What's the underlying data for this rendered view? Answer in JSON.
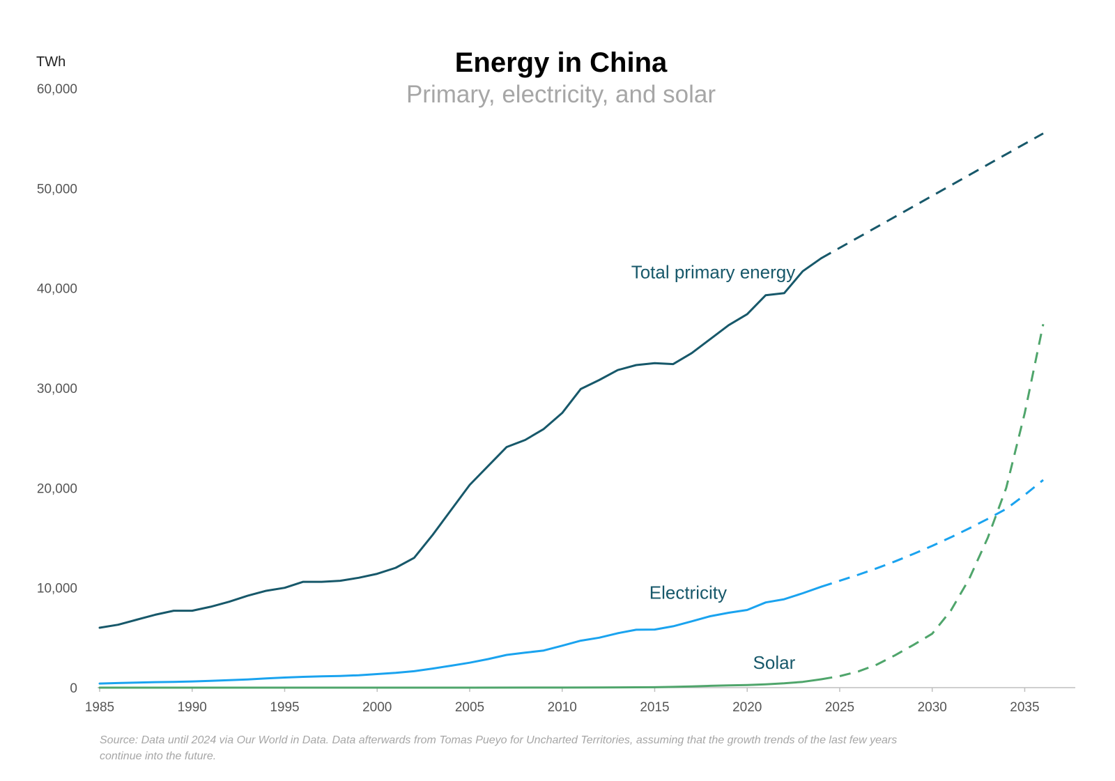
{
  "chart_data": {
    "type": "line",
    "title": "Energy in China",
    "subtitle": "Primary, electricity, and solar",
    "ylabel": "TWh",
    "xlabel": "",
    "xlim": [
      1985,
      2036
    ],
    "ylim": [
      0,
      60000
    ],
    "x_ticks": [
      "1985",
      "1990",
      "1995",
      "2000",
      "2005",
      "2010",
      "2015",
      "2020",
      "2025",
      "2030",
      "2035"
    ],
    "y_ticks": [
      "0",
      "10,000",
      "20,000",
      "30,000",
      "40,000",
      "50,000",
      "60,000"
    ],
    "grid": false,
    "legend": "none (series labeled directly on lines)",
    "series": [
      {
        "name": "Total primary energy",
        "color": "#17586a",
        "actual": {
          "x": [
            1985,
            1986,
            1987,
            1988,
            1989,
            1990,
            1991,
            1992,
            1993,
            1994,
            1995,
            1996,
            1997,
            1998,
            1999,
            2000,
            2001,
            2002,
            2003,
            2004,
            2005,
            2006,
            2007,
            2008,
            2009,
            2010,
            2011,
            2012,
            2013,
            2014,
            2015,
            2016,
            2017,
            2018,
            2019,
            2020,
            2021,
            2022,
            2023,
            2024
          ],
          "y": [
            6000,
            6300,
            6800,
            7300,
            7700,
            7700,
            8100,
            8600,
            9200,
            9700,
            10000,
            10600,
            10600,
            10700,
            11000,
            11400,
            12000,
            13000,
            15300,
            17800,
            20300,
            22200,
            24100,
            24800,
            25900,
            27500,
            29900,
            30800,
            31800,
            32300,
            32500,
            32400,
            33500,
            34900,
            36300,
            37400,
            39300,
            39500,
            41700,
            43000
          ],
          "style": "solid"
        },
        "projection": {
          "x": [
            2024,
            2036
          ],
          "y": [
            43000,
            55500
          ],
          "style": "dashed"
        }
      },
      {
        "name": "Electricity",
        "color": "#1aa3ef",
        "actual": {
          "x": [
            1985,
            1986,
            1987,
            1988,
            1989,
            1990,
            1991,
            1992,
            1993,
            1994,
            1995,
            1996,
            1997,
            1998,
            1999,
            2000,
            2001,
            2002,
            2003,
            2004,
            2005,
            2006,
            2007,
            2008,
            2009,
            2010,
            2011,
            2012,
            2013,
            2014,
            2015,
            2016,
            2017,
            2018,
            2019,
            2020,
            2021,
            2022,
            2023,
            2024
          ],
          "y": [
            410,
            460,
            500,
            550,
            580,
            620,
            680,
            750,
            820,
            920,
            1010,
            1080,
            1130,
            1170,
            1240,
            1360,
            1480,
            1650,
            1910,
            2200,
            2500,
            2860,
            3280,
            3500,
            3720,
            4200,
            4700,
            5000,
            5450,
            5800,
            5820,
            6150,
            6640,
            7150,
            7500,
            7780,
            8530,
            8850,
            9450,
            10100
          ],
          "style": "solid"
        },
        "projection": {
          "x": [
            2024,
            2025,
            2026,
            2027,
            2028,
            2029,
            2030,
            2031,
            2032,
            2033,
            2034,
            2035,
            2036
          ],
          "y": [
            10100,
            10700,
            11300,
            11950,
            12650,
            13400,
            14200,
            15050,
            15950,
            16900,
            17900,
            19300,
            20800
          ],
          "style": "dashed"
        }
      },
      {
        "name": "Solar",
        "color": "#4fa56b",
        "actual": {
          "x": [
            1985,
            1990,
            1995,
            2000,
            2005,
            2010,
            2012,
            2014,
            2015,
            2016,
            2017,
            2018,
            2019,
            2020,
            2021,
            2022,
            2023,
            2024
          ],
          "y": [
            0,
            0,
            0,
            0,
            0,
            10,
            20,
            35,
            45,
            75,
            120,
            180,
            220,
            260,
            330,
            430,
            580,
            834
          ],
          "style": "solid"
        },
        "projection": {
          "x": [
            2024,
            2025,
            2026,
            2027,
            2028,
            2029,
            2030,
            2031,
            2032,
            2033,
            2034,
            2035,
            2036
          ],
          "y": [
            834,
            1150,
            1620,
            2300,
            3250,
            4300,
            5400,
            7700,
            10900,
            15000,
            20000,
            27500,
            36400
          ],
          "style": "dashed"
        }
      }
    ],
    "annotations": [
      {
        "text": "Total primary energy",
        "x": 2022.6,
        "y": 41000,
        "anchor": "end",
        "color": "#17586a"
      },
      {
        "text": "Electricity",
        "x": 2018.9,
        "y": 8900,
        "anchor": "end",
        "color": "#17586a"
      },
      {
        "text": "Solar",
        "x": 2022.6,
        "y": 1900,
        "anchor": "end",
        "color": "#17586a"
      }
    ],
    "source": "Source: Data until 2024 via Our World in Data. Data afterwards from Tomas Pueyo for Uncharted Territories, assuming that the growth trends of the last few years continue into the future."
  }
}
